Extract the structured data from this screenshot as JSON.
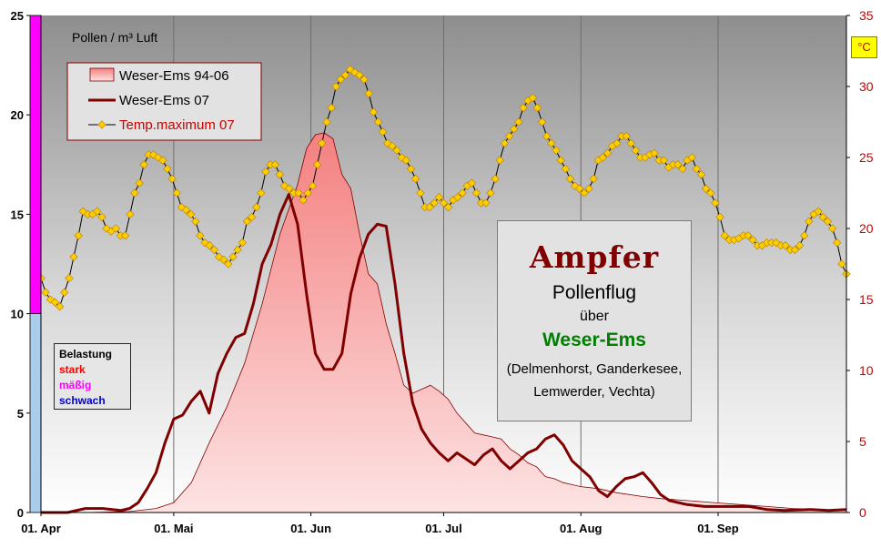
{
  "chart_data": {
    "type": "area",
    "ylabel": "Pollen / m³ Luft",
    "ylim": [
      0,
      25
    ],
    "y2lim": [
      0,
      35
    ],
    "y2unit": "°C",
    "yticks": [
      "0",
      "5",
      "10",
      "15",
      "20",
      "25"
    ],
    "y2ticks": [
      "0",
      "5",
      "10",
      "15",
      "20",
      "25",
      "30",
      "35"
    ],
    "xticks": [
      {
        "label": "01. Apr",
        "day": 0
      },
      {
        "label": "01. Mai",
        "day": 30
      },
      {
        "label": "01. Jun",
        "day": 61
      },
      {
        "label": "01. Jul",
        "day": 91
      },
      {
        "label": "01. Aug",
        "day": 122
      },
      {
        "label": "01. Sep",
        "day": 153
      }
    ],
    "x_end_day": 182,
    "grid": true,
    "legend_position": "top-left",
    "load_levels": [
      {
        "name": "schwach",
        "from": 0,
        "to": 10,
        "color": "#a9cdea"
      },
      {
        "name": "mäßig",
        "from": 10,
        "to": 25,
        "color": "#ff00ff"
      }
    ],
    "series": [
      {
        "name": "Weser-Ems 94-06",
        "type": "area",
        "axis": "left",
        "color": "#800000",
        "fill": "#f59a9a",
        "points": [
          [
            0,
            0
          ],
          [
            10,
            0
          ],
          [
            20,
            0.05
          ],
          [
            26,
            0.2
          ],
          [
            30,
            0.5
          ],
          [
            34,
            1.5
          ],
          [
            38,
            3.5
          ],
          [
            42,
            5.3
          ],
          [
            46,
            7.5
          ],
          [
            50,
            10.5
          ],
          [
            54,
            14
          ],
          [
            58,
            16.5
          ],
          [
            60,
            18.3
          ],
          [
            62,
            19
          ],
          [
            64,
            19.1
          ],
          [
            66,
            18.8
          ],
          [
            68,
            17
          ],
          [
            70,
            16.3
          ],
          [
            72,
            14
          ],
          [
            74,
            12
          ],
          [
            76,
            11.5
          ],
          [
            78,
            9.5
          ],
          [
            80,
            8
          ],
          [
            82,
            6.4
          ],
          [
            84,
            6
          ],
          [
            86,
            6.2
          ],
          [
            88,
            6.4
          ],
          [
            90,
            6.1
          ],
          [
            92,
            5.7
          ],
          [
            94,
            5
          ],
          [
            96,
            4.5
          ],
          [
            98,
            4
          ],
          [
            100,
            3.9
          ],
          [
            102,
            3.8
          ],
          [
            104,
            3.7
          ],
          [
            106,
            3.2
          ],
          [
            108,
            2.9
          ],
          [
            110,
            2.5
          ],
          [
            112,
            2.3
          ],
          [
            114,
            1.8
          ],
          [
            116,
            1.7
          ],
          [
            118,
            1.5
          ],
          [
            120,
            1.4
          ],
          [
            122,
            1.3
          ],
          [
            126,
            1.2
          ],
          [
            130,
            1.0
          ],
          [
            136,
            0.8
          ],
          [
            140,
            0.7
          ],
          [
            146,
            0.6
          ],
          [
            152,
            0.5
          ],
          [
            158,
            0.4
          ],
          [
            164,
            0.3
          ],
          [
            170,
            0.2
          ],
          [
            176,
            0.15
          ],
          [
            182,
            0.1
          ]
        ]
      },
      {
        "name": "Weser-Ems  07",
        "type": "line",
        "axis": "left",
        "color": "#800000",
        "points": [
          [
            0,
            0
          ],
          [
            6,
            0
          ],
          [
            10,
            0.2
          ],
          [
            14,
            0.2
          ],
          [
            18,
            0.1
          ],
          [
            20,
            0.2
          ],
          [
            22,
            0.5
          ],
          [
            24,
            1.2
          ],
          [
            26,
            2
          ],
          [
            28,
            3.5
          ],
          [
            30,
            4.7
          ],
          [
            32,
            4.9
          ],
          [
            34,
            5.6
          ],
          [
            36,
            6.1
          ],
          [
            38,
            5
          ],
          [
            40,
            7
          ],
          [
            42,
            8
          ],
          [
            44,
            8.8
          ],
          [
            46,
            9
          ],
          [
            48,
            10.5
          ],
          [
            50,
            12.5
          ],
          [
            52,
            13.5
          ],
          [
            54,
            15
          ],
          [
            56,
            16
          ],
          [
            58,
            14.5
          ],
          [
            60,
            11
          ],
          [
            62,
            8
          ],
          [
            64,
            7.2
          ],
          [
            66,
            7.2
          ],
          [
            68,
            8
          ],
          [
            70,
            11
          ],
          [
            72,
            12.8
          ],
          [
            74,
            14
          ],
          [
            76,
            14.5
          ],
          [
            78,
            14.4
          ],
          [
            80,
            11.5
          ],
          [
            82,
            8
          ],
          [
            84,
            5.5
          ],
          [
            86,
            4.2
          ],
          [
            88,
            3.5
          ],
          [
            90,
            3
          ],
          [
            92,
            2.6
          ],
          [
            94,
            3
          ],
          [
            96,
            2.7
          ],
          [
            98,
            2.4
          ],
          [
            100,
            2.9
          ],
          [
            102,
            3.2
          ],
          [
            104,
            2.6
          ],
          [
            106,
            2.2
          ],
          [
            108,
            2.6
          ],
          [
            110,
            3
          ],
          [
            112,
            3.2
          ],
          [
            114,
            3.7
          ],
          [
            116,
            3.9
          ],
          [
            118,
            3.4
          ],
          [
            120,
            2.6
          ],
          [
            122,
            2.2
          ],
          [
            124,
            1.8
          ],
          [
            126,
            1.1
          ],
          [
            128,
            0.8
          ],
          [
            130,
            1.3
          ],
          [
            132,
            1.7
          ],
          [
            134,
            1.8
          ],
          [
            136,
            2.0
          ],
          [
            138,
            1.5
          ],
          [
            140,
            0.9
          ],
          [
            142,
            0.6
          ],
          [
            144,
            0.5
          ],
          [
            146,
            0.4
          ],
          [
            150,
            0.3
          ],
          [
            156,
            0.3
          ],
          [
            160,
            0.3
          ],
          [
            164,
            0.15
          ],
          [
            168,
            0.1
          ],
          [
            174,
            0.15
          ],
          [
            178,
            0.1
          ],
          [
            182,
            0.15
          ]
        ]
      },
      {
        "name": "Temp.maximum 07",
        "type": "line-markers",
        "axis": "right",
        "color": "#000000",
        "marker_color": "#ffcc00",
        "values": [
          16.5,
          15.5,
          15,
          14.8,
          14.5,
          15.5,
          16.5,
          18,
          19.5,
          21.2,
          21,
          21,
          21.2,
          20.8,
          20,
          19.8,
          20,
          19.5,
          19.5,
          21,
          22.5,
          23.2,
          24.5,
          25.2,
          25.2,
          25,
          24.8,
          24.2,
          23.5,
          22.5,
          21.5,
          21.3,
          21,
          20.5,
          19.5,
          19,
          18.8,
          18.5,
          18,
          17.8,
          17.5,
          18,
          18.5,
          19,
          20.5,
          20.8,
          21.5,
          22.5,
          24,
          24.5,
          24.5,
          23.8,
          23,
          22.8,
          22.5,
          22.5,
          22,
          22.5,
          23,
          24.5,
          26,
          27.5,
          28.5,
          30,
          30.5,
          30.8,
          31.2,
          31,
          30.8,
          30.5,
          29.5,
          28.2,
          27.5,
          26.8,
          26,
          25.8,
          25.5,
          25,
          24.8,
          24.2,
          23.5,
          22.5,
          21.5,
          21.5,
          21.8,
          22.2,
          21.8,
          21.5,
          22,
          22.2,
          22.5,
          23,
          23.2,
          22.5,
          21.8,
          21.8,
          22.5,
          23.5,
          24.8,
          26,
          26.5,
          27,
          27.5,
          28.5,
          29,
          29.2,
          28.5,
          27.5,
          26.5,
          26,
          25.5,
          24.8,
          24.2,
          23.5,
          23,
          22.8,
          22.5,
          22.8,
          23.5,
          24.8,
          25,
          25.3,
          25.8,
          26,
          26.5,
          26.5,
          26,
          25.5,
          25,
          25,
          25.2,
          25.3,
          24.8,
          24.8,
          24.3,
          24.5,
          24.5,
          24.2,
          24.8,
          25,
          24.2,
          23.8,
          22.8,
          22.5,
          21.8,
          20.8,
          19.5,
          19.2,
          19.2,
          19.3,
          19.5,
          19.5,
          19.2,
          18.8,
          18.8,
          19,
          19,
          19,
          18.8,
          18.8,
          18.5,
          18.5,
          18.8,
          19.5,
          20.5,
          21,
          21.2,
          20.8,
          20.5,
          20,
          19,
          17.5,
          16.8
        ]
      }
    ]
  },
  "labels": {
    "pollen_unit": "Pollen / m³ Luft",
    "celsius": "°C",
    "load_title": "Belastung",
    "load_strong": "stark",
    "load_moderate": "mäßig",
    "load_weak": "schwach",
    "title": "Ampfer",
    "subtitle": "Pollenflug",
    "preposition": "über",
    "region": "Weser-Ems",
    "places": "(Delmenhorst, Ganderkesee, Lemwerder, Vechta)"
  },
  "colors": {
    "strong": "#ff0000",
    "moderate": "#ff00ff",
    "weak": "#0000cc",
    "temp_axis": "#cc0000"
  }
}
